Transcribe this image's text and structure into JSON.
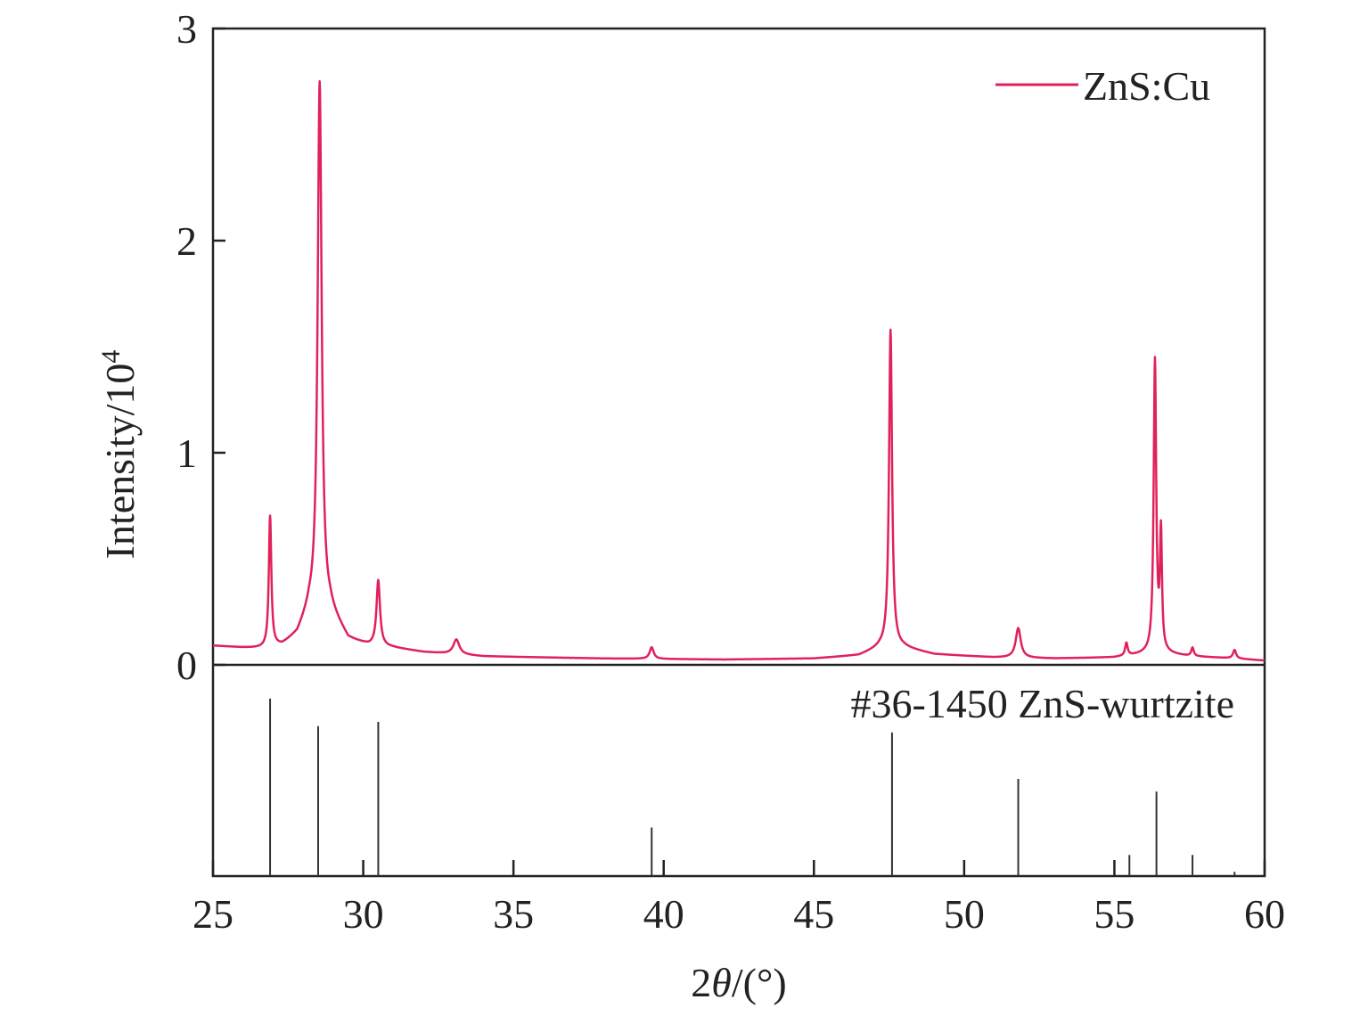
{
  "chart_data": {
    "type": "line",
    "xlabel_prefix": "2",
    "xlabel_theta": "θ",
    "xlabel_suffix": "/(°)",
    "ylabel_main": "Intensity/10",
    "ylabel_sup": "4",
    "xlim": [
      25,
      60
    ],
    "ylim": [
      0,
      3
    ],
    "xticks": [
      "25",
      "30",
      "35",
      "40",
      "45",
      "50",
      "55",
      "60"
    ],
    "yticks": [
      "0",
      "1",
      "2",
      "3"
    ],
    "legend_position": "top-right",
    "series": [
      {
        "name": "ZnS:Cu",
        "color": "#e0215a",
        "background": [
          [
            25,
            0.09
          ],
          [
            26,
            0.08
          ],
          [
            26.8,
            0.075
          ],
          [
            27.3,
            0.09
          ],
          [
            27.8,
            0.14
          ],
          [
            28.2,
            0.25
          ],
          [
            28.9,
            0.25
          ],
          [
            29.5,
            0.12
          ],
          [
            30.2,
            0.09
          ],
          [
            31.0,
            0.08
          ],
          [
            32,
            0.06
          ],
          [
            34,
            0.04
          ],
          [
            36,
            0.035
          ],
          [
            38,
            0.03
          ],
          [
            42,
            0.025
          ],
          [
            45,
            0.03
          ],
          [
            46.5,
            0.045
          ],
          [
            47.2,
            0.08
          ],
          [
            48.0,
            0.08
          ],
          [
            49,
            0.05
          ],
          [
            51,
            0.035
          ],
          [
            53,
            0.03
          ],
          [
            55,
            0.035
          ],
          [
            56,
            0.05
          ],
          [
            56.8,
            0.05
          ],
          [
            57.5,
            0.04
          ],
          [
            59,
            0.03
          ],
          [
            60,
            0.02
          ]
        ],
        "peaks": [
          {
            "center": 26.9,
            "height": 0.62,
            "width": 0.05
          },
          {
            "center": 28.55,
            "height": 2.5,
            "width": 0.08
          },
          {
            "center": 30.5,
            "height": 0.31,
            "width": 0.07
          },
          {
            "center": 33.1,
            "height": 0.07,
            "width": 0.12
          },
          {
            "center": 39.6,
            "height": 0.055,
            "width": 0.08
          },
          {
            "center": 47.55,
            "height": 1.5,
            "width": 0.06
          },
          {
            "center": 51.8,
            "height": 0.14,
            "width": 0.1
          },
          {
            "center": 55.4,
            "height": 0.06,
            "width": 0.05
          },
          {
            "center": 56.35,
            "height": 1.38,
            "width": 0.05
          },
          {
            "center": 56.55,
            "height": 0.55,
            "width": 0.04
          },
          {
            "center": 57.6,
            "height": 0.04,
            "width": 0.05
          },
          {
            "center": 59.0,
            "height": 0.04,
            "width": 0.06
          }
        ]
      }
    ],
    "reference": {
      "label": "#36-1450 ZnS-wurtzite",
      "color": "#333333",
      "lines": [
        {
          "x": 26.9,
          "rel": 0.84
        },
        {
          "x": 28.5,
          "rel": 0.71
        },
        {
          "x": 30.5,
          "rel": 0.73
        },
        {
          "x": 39.6,
          "rel": 0.23
        },
        {
          "x": 47.6,
          "rel": 0.68
        },
        {
          "x": 51.8,
          "rel": 0.46
        },
        {
          "x": 55.5,
          "rel": 0.1
        },
        {
          "x": 56.4,
          "rel": 0.4
        },
        {
          "x": 57.6,
          "rel": 0.1
        },
        {
          "x": 59.0,
          "rel": 0.02
        }
      ]
    }
  }
}
